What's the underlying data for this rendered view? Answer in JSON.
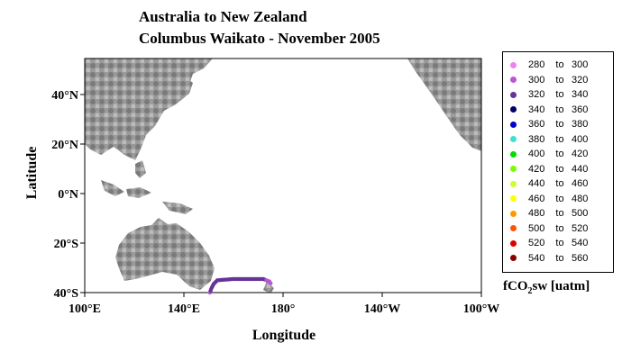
{
  "title_line1": "Australia to New Zealand",
  "title_line2": "Columbus Waikato - November 2005",
  "ylabel": "Latitude",
  "xlabel": "Longitude",
  "lat_ticks": [
    "40°N",
    "20°N",
    "0°N",
    "20°S",
    "40°S"
  ],
  "lon_ticks": [
    "100°E",
    "140°E",
    "180°",
    "140°W",
    "100°W"
  ],
  "legend": [
    {
      "low": "280",
      "to": "to",
      "high": "300",
      "color": "#ee82ee"
    },
    {
      "low": "300",
      "to": "to",
      "high": "320",
      "color": "#ba55d3"
    },
    {
      "low": "320",
      "to": "to",
      "high": "340",
      "color": "#663399"
    },
    {
      "low": "340",
      "to": "to",
      "high": "360",
      "color": "#000066"
    },
    {
      "low": "360",
      "to": "to",
      "high": "380",
      "color": "#0000cd"
    },
    {
      "low": "380",
      "to": "to",
      "high": "400",
      "color": "#40e0d0"
    },
    {
      "low": "400",
      "to": "to",
      "high": "420",
      "color": "#00dd00"
    },
    {
      "low": "420",
      "to": "to",
      "high": "440",
      "color": "#7cfc00"
    },
    {
      "low": "440",
      "to": "to",
      "high": "460",
      "color": "#ccff33"
    },
    {
      "low": "460",
      "to": "to",
      "high": "480",
      "color": "#ffff00"
    },
    {
      "low": "480",
      "to": "to",
      "high": "500",
      "color": "#ff9900"
    },
    {
      "low": "500",
      "to": "to",
      "high": "520",
      "color": "#ff5500"
    },
    {
      "low": "520",
      "to": "to",
      "high": "540",
      "color": "#dd0000"
    },
    {
      "low": "540",
      "to": "to",
      "high": "560",
      "color": "#880000"
    }
  ],
  "units_pre": "fCO",
  "units_sub": "2",
  "units_post": "sw [uatm]",
  "chart_data": {
    "type": "scatter",
    "x_range": [
      100,
      260
    ],
    "y_range": [
      -40,
      55
    ],
    "ship_track": [
      {
        "x": 150.5,
        "y": -40,
        "color": "#ba55d3"
      },
      {
        "x": 151.0,
        "y": -38.5,
        "color": "#663399"
      },
      {
        "x": 152.0,
        "y": -36.5,
        "color": "#663399"
      },
      {
        "x": 153.5,
        "y": -35.0,
        "color": "#663399"
      },
      {
        "x": 160.0,
        "y": -34.5,
        "color": "#663399"
      },
      {
        "x": 166.0,
        "y": -34.5,
        "color": "#663399"
      },
      {
        "x": 172.0,
        "y": -34.5,
        "color": "#663399"
      },
      {
        "x": 174.5,
        "y": -35.5,
        "color": "#ba55d3"
      },
      {
        "x": 175.5,
        "y": -37.0,
        "color": "#ba55d3"
      }
    ]
  }
}
